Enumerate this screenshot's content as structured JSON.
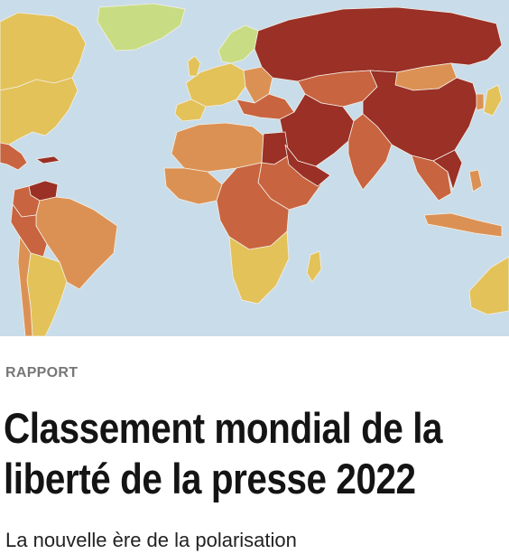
{
  "article": {
    "category": "RAPPORT",
    "title_line1": "Classement mondial de la",
    "title_line2": "liberté de la presse 2022",
    "subtitle": "La nouvelle ère de la polarisation"
  },
  "map": {
    "ocean_color": "#c9dce9",
    "legend_colors": {
      "good": "#c8dd83",
      "satisfactory": "#e3c25a",
      "problematic": "#dc9154",
      "difficult": "#c8643f",
      "very_serious": "#9a3026"
    }
  }
}
